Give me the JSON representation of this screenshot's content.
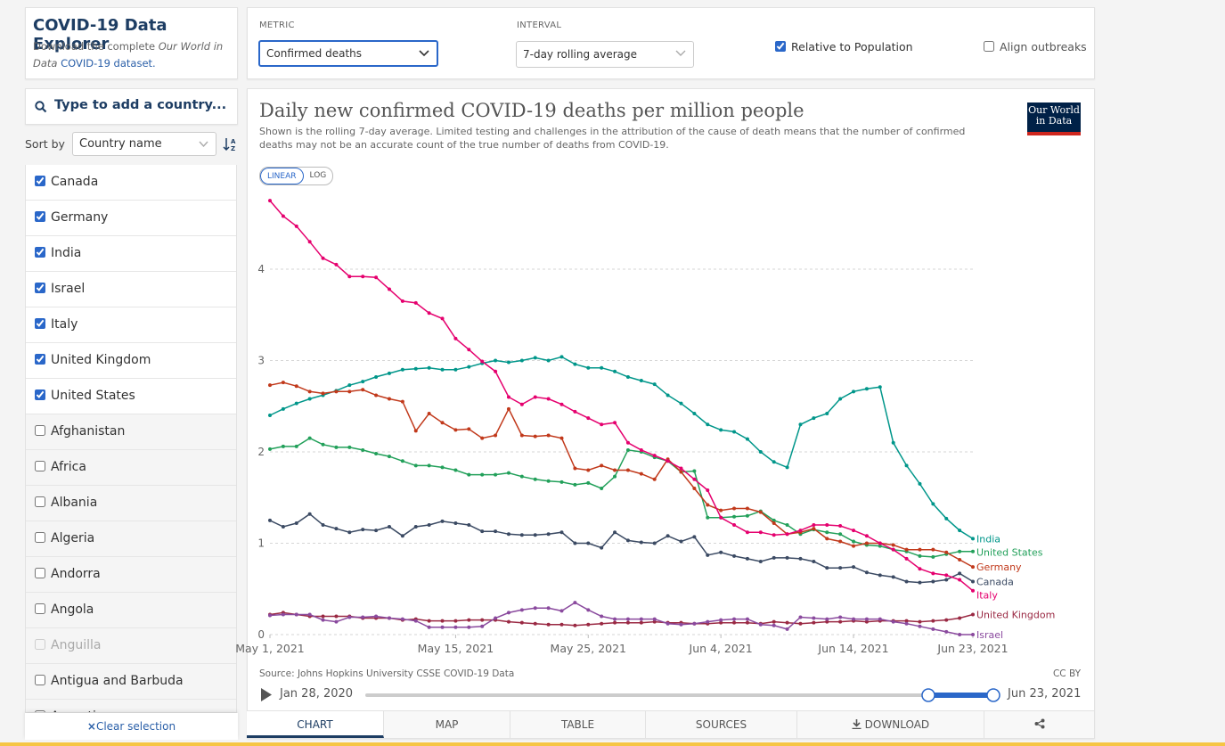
{
  "explorer": {
    "title": "COVID-19 Data Explorer",
    "description": {
      "text": "Download the complete",
      "italic": "Our World in Data",
      "link": "COVID-19 dataset."
    }
  },
  "controls": {
    "metric": {
      "label": "METRIC",
      "value": "Confirmed deaths"
    },
    "interval": {
      "label": "INTERVAL",
      "value": "7-day rolling average"
    },
    "options": [
      {
        "label": "Relative to Population",
        "checked": true
      },
      {
        "label": "Align outbreaks",
        "checked": false
      }
    ]
  },
  "search": {
    "placeholder": "Type to add a country..."
  },
  "sort": {
    "label": "Sort by",
    "value": "Country name"
  },
  "countries": [
    {
      "name": "Canada",
      "checked": true
    },
    {
      "name": "Germany",
      "checked": true
    },
    {
      "name": "India",
      "checked": true
    },
    {
      "name": "Israel",
      "checked": true
    },
    {
      "name": "Italy",
      "checked": true
    },
    {
      "name": "United Kingdom",
      "checked": true
    },
    {
      "name": "United States",
      "checked": true
    },
    {
      "name": "Afghanistan",
      "checked": false
    },
    {
      "name": "Africa",
      "checked": false
    },
    {
      "name": "Albania",
      "checked": false
    },
    {
      "name": "Algeria",
      "checked": false
    },
    {
      "name": "Andorra",
      "checked": false
    },
    {
      "name": "Angola",
      "checked": false
    },
    {
      "name": "Anguilla",
      "checked": false,
      "disabled": true
    },
    {
      "name": "Antigua and Barbuda",
      "checked": false
    },
    {
      "name": "Argentina",
      "checked": false
    }
  ],
  "clear": "Clear selection",
  "chart_data": {
    "type": "line",
    "title": "Daily new confirmed COVID-19 deaths per million people",
    "subtitle": "Shown is the rolling 7-day average. Limited testing and challenges in the attribution of the cause of death means that the number of confirmed deaths may not be an accurate count of the true number of deaths from COVID-19.",
    "logo": [
      "Our World",
      "in Data"
    ],
    "scale_options": [
      "LINEAR",
      "LOG"
    ],
    "log_scale": false,
    "grid": true,
    "x": [
      "2021-05-01",
      "2021-05-02",
      "2021-05-03",
      "2021-05-04",
      "2021-05-05",
      "2021-05-06",
      "2021-05-07",
      "2021-05-08",
      "2021-05-09",
      "2021-05-10",
      "2021-05-11",
      "2021-05-12",
      "2021-05-13",
      "2021-05-14",
      "2021-05-15",
      "2021-05-16",
      "2021-05-17",
      "2021-05-18",
      "2021-05-19",
      "2021-05-20",
      "2021-05-21",
      "2021-05-22",
      "2021-05-23",
      "2021-05-24",
      "2021-05-25",
      "2021-05-26",
      "2021-05-27",
      "2021-05-28",
      "2021-05-29",
      "2021-05-30",
      "2021-05-31",
      "2021-06-01",
      "2021-06-02",
      "2021-06-03",
      "2021-06-04",
      "2021-06-05",
      "2021-06-06",
      "2021-06-07",
      "2021-06-08",
      "2021-06-09",
      "2021-06-10",
      "2021-06-11",
      "2021-06-12",
      "2021-06-13",
      "2021-06-14",
      "2021-06-15",
      "2021-06-16",
      "2021-06-17",
      "2021-06-18",
      "2021-06-19",
      "2021-06-20",
      "2021-06-21",
      "2021-06-22",
      "2021-06-23"
    ],
    "xlim": [
      "2021-05-01",
      "2021-06-23"
    ],
    "xticks": [
      {
        "value": "2021-05-01",
        "label": "May 1, 2021"
      },
      {
        "value": "2021-05-15",
        "label": "May 15, 2021"
      },
      {
        "value": "2021-05-25",
        "label": "May 25, 2021"
      },
      {
        "value": "2021-06-04",
        "label": "Jun 4, 2021"
      },
      {
        "value": "2021-06-14",
        "label": "Jun 14, 2021"
      },
      {
        "value": "2021-06-23",
        "label": "Jun 23, 2021"
      }
    ],
    "ylim": [
      0,
      4.8
    ],
    "yticks": [
      0,
      1,
      2,
      3,
      4
    ],
    "series": [
      {
        "name": "India",
        "color": "#00968a",
        "values": [
          2.4,
          2.47,
          2.53,
          2.58,
          2.62,
          2.67,
          2.73,
          2.77,
          2.82,
          2.86,
          2.9,
          2.91,
          2.92,
          2.9,
          2.9,
          2.93,
          2.97,
          3.0,
          2.98,
          3.0,
          3.03,
          3.0,
          3.04,
          2.96,
          2.92,
          2.92,
          2.88,
          2.82,
          2.78,
          2.74,
          2.62,
          2.53,
          2.42,
          2.3,
          2.24,
          2.22,
          2.14,
          2.0,
          1.89,
          1.83,
          2.3,
          2.37,
          2.42,
          2.58,
          2.66,
          2.69,
          2.71,
          2.1,
          1.85,
          1.65,
          1.43,
          1.27,
          1.14,
          1.05
        ]
      },
      {
        "name": "United States",
        "color": "#22a05a",
        "values": [
          2.03,
          2.06,
          2.06,
          2.15,
          2.08,
          2.05,
          2.05,
          2.02,
          1.98,
          1.95,
          1.9,
          1.85,
          1.85,
          1.83,
          1.8,
          1.75,
          1.75,
          1.75,
          1.77,
          1.73,
          1.7,
          1.68,
          1.67,
          1.64,
          1.66,
          1.6,
          1.73,
          2.02,
          2.0,
          1.94,
          1.9,
          1.78,
          1.79,
          1.28,
          1.28,
          1.29,
          1.3,
          1.35,
          1.25,
          1.2,
          1.1,
          1.15,
          1.12,
          1.1,
          1.02,
          0.98,
          0.97,
          0.93,
          0.91,
          0.86,
          0.85,
          0.88,
          0.91,
          0.91
        ]
      },
      {
        "name": "Germany",
        "color": "#c1391b",
        "values": [
          2.73,
          2.76,
          2.72,
          2.66,
          2.64,
          2.66,
          2.66,
          2.68,
          2.62,
          2.58,
          2.55,
          2.23,
          2.42,
          2.32,
          2.24,
          2.25,
          2.15,
          2.18,
          2.47,
          2.18,
          2.17,
          2.18,
          2.15,
          1.82,
          1.8,
          1.85,
          1.8,
          1.8,
          1.76,
          1.7,
          1.92,
          1.78,
          1.6,
          1.42,
          1.36,
          1.38,
          1.38,
          1.34,
          1.22,
          1.1,
          1.12,
          1.16,
          1.05,
          1.02,
          0.97,
          1.0,
          1.0,
          0.98,
          0.93,
          0.93,
          0.93,
          0.9,
          0.82,
          0.74
        ]
      },
      {
        "name": "Canada",
        "color": "#3b4a63",
        "values": [
          1.25,
          1.18,
          1.22,
          1.32,
          1.2,
          1.16,
          1.12,
          1.15,
          1.14,
          1.18,
          1.08,
          1.18,
          1.2,
          1.24,
          1.22,
          1.2,
          1.13,
          1.13,
          1.1,
          1.09,
          1.09,
          1.1,
          1.12,
          1.0,
          1.0,
          0.95,
          1.12,
          1.03,
          1.01,
          1.0,
          1.08,
          1.02,
          1.07,
          0.87,
          0.9,
          0.86,
          0.83,
          0.8,
          0.84,
          0.84,
          0.83,
          0.8,
          0.73,
          0.73,
          0.74,
          0.68,
          0.65,
          0.63,
          0.58,
          0.57,
          0.58,
          0.6,
          0.67,
          0.58
        ]
      },
      {
        "name": "Italy",
        "color": "#e5006e",
        "values": [
          4.75,
          4.58,
          4.47,
          4.3,
          4.12,
          4.05,
          3.92,
          3.92,
          3.91,
          3.78,
          3.65,
          3.63,
          3.52,
          3.46,
          3.24,
          3.12,
          2.99,
          2.88,
          2.6,
          2.52,
          2.6,
          2.58,
          2.52,
          2.44,
          2.37,
          2.3,
          2.32,
          2.1,
          2.02,
          1.96,
          1.9,
          1.82,
          1.7,
          1.58,
          1.28,
          1.2,
          1.12,
          1.12,
          1.09,
          1.1,
          1.14,
          1.2,
          1.2,
          1.19,
          1.14,
          1.08,
          1.0,
          0.93,
          0.83,
          0.72,
          0.67,
          0.65,
          0.6,
          0.48
        ]
      },
      {
        "name": "United Kingdom",
        "color": "#9a2943",
        "values": [
          0.22,
          0.24,
          0.22,
          0.2,
          0.2,
          0.2,
          0.2,
          0.18,
          0.18,
          0.18,
          0.16,
          0.17,
          0.15,
          0.15,
          0.15,
          0.16,
          0.16,
          0.16,
          0.14,
          0.13,
          0.12,
          0.11,
          0.11,
          0.1,
          0.11,
          0.12,
          0.13,
          0.13,
          0.13,
          0.14,
          0.13,
          0.13,
          0.12,
          0.12,
          0.13,
          0.13,
          0.13,
          0.12,
          0.14,
          0.13,
          0.12,
          0.13,
          0.14,
          0.14,
          0.15,
          0.14,
          0.15,
          0.15,
          0.15,
          0.14,
          0.15,
          0.16,
          0.18,
          0.22
        ]
      },
      {
        "name": "Israel",
        "color": "#8a4a9e",
        "values": [
          0.21,
          0.22,
          0.22,
          0.22,
          0.16,
          0.14,
          0.19,
          0.19,
          0.2,
          0.18,
          0.17,
          0.15,
          0.08,
          0.08,
          0.08,
          0.08,
          0.09,
          0.18,
          0.24,
          0.27,
          0.29,
          0.29,
          0.26,
          0.35,
          0.27,
          0.2,
          0.17,
          0.17,
          0.17,
          0.17,
          0.12,
          0.11,
          0.12,
          0.14,
          0.16,
          0.17,
          0.17,
          0.11,
          0.1,
          0.06,
          0.19,
          0.18,
          0.17,
          0.19,
          0.17,
          0.17,
          0.17,
          0.14,
          0.12,
          0.09,
          0.06,
          0.03,
          0,
          0
        ]
      }
    ],
    "source": "Source: Johns Hopkins University CSSE COVID-19 Data",
    "license": "CC BY"
  },
  "timeline": {
    "start": "Jan 28, 2020",
    "end": "Jun 23, 2021"
  },
  "tabs": [
    "CHART",
    "MAP",
    "TABLE",
    "SOURCES",
    "DOWNLOAD"
  ]
}
